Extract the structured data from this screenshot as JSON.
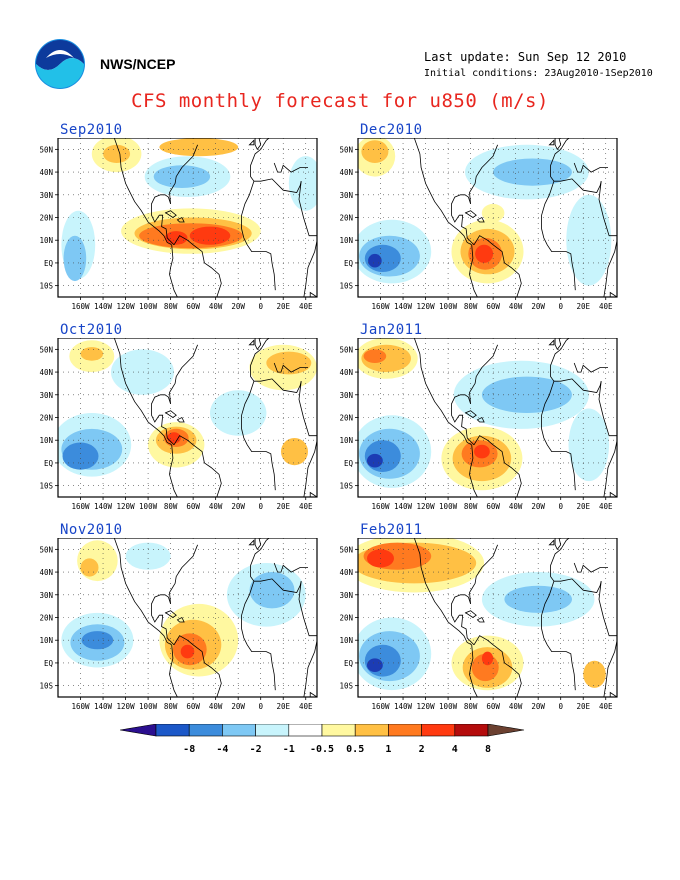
{
  "header": {
    "org": "NWS/NCEP",
    "last_update": "Last update: Sun Sep 12 2010",
    "initial_conditions": "Initial conditions: 23Aug2010-1Sep2010",
    "title": "CFS monthly forecast for u850 (m/s)",
    "logo_icon": "noaa-logo-icon"
  },
  "axes": {
    "lon_labels": [
      "160W",
      "140W",
      "120W",
      "100W",
      "80W",
      "60W",
      "40W",
      "20W",
      "0",
      "20E",
      "40E"
    ],
    "lat_labels": [
      "50N",
      "40N",
      "30N",
      "20N",
      "10N",
      "EQ",
      "10S"
    ]
  },
  "panels": [
    {
      "label": "Sep2010",
      "col": 0,
      "row": 0,
      "features": [
        {
          "c": "#fff8a0",
          "lon": -62,
          "lat": 14,
          "rx": 62,
          "ry": 10
        },
        {
          "c": "#ffc044",
          "lon": -60,
          "lat": 13,
          "rx": 52,
          "ry": 7
        },
        {
          "c": "#ff7a20",
          "lon": -62,
          "lat": 12,
          "rx": 46,
          "ry": 5.5
        },
        {
          "c": "#ff3a10",
          "lon": -45,
          "lat": 12,
          "rx": 18,
          "ry": 4
        },
        {
          "c": "#ff3a10",
          "lon": -75,
          "lat": 11,
          "rx": 10,
          "ry": 3
        },
        {
          "c": "#fff8a0",
          "lon": -128,
          "lat": 48,
          "rx": 22,
          "ry": 8
        },
        {
          "c": "#ffc044",
          "lon": -128,
          "lat": 48,
          "rx": 12,
          "ry": 4
        },
        {
          "c": "#ffc044",
          "lon": -55,
          "lat": 51,
          "rx": 35,
          "ry": 4
        },
        {
          "c": "#c8f4fc",
          "lon": -65,
          "lat": 38,
          "rx": 38,
          "ry": 9
        },
        {
          "c": "#7ec8f4",
          "lon": -70,
          "lat": 38,
          "rx": 25,
          "ry": 5
        },
        {
          "c": "#c8f4fc",
          "lon": -162,
          "lat": 8,
          "rx": 15,
          "ry": 15
        },
        {
          "c": "#7ec8f4",
          "lon": -165,
          "lat": 2,
          "rx": 10,
          "ry": 10
        },
        {
          "c": "#c8f4fc",
          "lon": 40,
          "lat": 35,
          "rx": 15,
          "ry": 12
        }
      ]
    },
    {
      "label": "Oct2010",
      "col": 0,
      "row": 1,
      "features": [
        {
          "c": "#c8f4fc",
          "lon": -150,
          "lat": 8,
          "rx": 35,
          "ry": 14
        },
        {
          "c": "#7ec8f4",
          "lon": -150,
          "lat": 6,
          "rx": 27,
          "ry": 9
        },
        {
          "c": "#3c8cdc",
          "lon": -160,
          "lat": 3,
          "rx": 16,
          "ry": 6
        },
        {
          "c": "#fff8a0",
          "lon": -75,
          "lat": 8,
          "rx": 25,
          "ry": 10
        },
        {
          "c": "#ffc044",
          "lon": -75,
          "lat": 10,
          "rx": 18,
          "ry": 6
        },
        {
          "c": "#ff7a20",
          "lon": -75,
          "lat": 11,
          "rx": 11,
          "ry": 4
        },
        {
          "c": "#ff3a10",
          "lon": -77,
          "lat": 11,
          "rx": 6,
          "ry": 2.5
        },
        {
          "c": "#fff8a0",
          "lon": -150,
          "lat": 47,
          "rx": 20,
          "ry": 7
        },
        {
          "c": "#ffc044",
          "lon": -150,
          "lat": 48,
          "rx": 10,
          "ry": 3
        },
        {
          "c": "#c8f4fc",
          "lon": -105,
          "lat": 40,
          "rx": 28,
          "ry": 10
        },
        {
          "c": "#fff8a0",
          "lon": 20,
          "lat": 42,
          "rx": 30,
          "ry": 10
        },
        {
          "c": "#ffc044",
          "lon": 25,
          "lat": 44,
          "rx": 20,
          "ry": 5
        },
        {
          "c": "#c8f4fc",
          "lon": -20,
          "lat": 22,
          "rx": 25,
          "ry": 10
        },
        {
          "c": "#ffc044",
          "lon": 30,
          "lat": 5,
          "rx": 12,
          "ry": 6
        }
      ]
    },
    {
      "label": "Nov2010",
      "col": 0,
      "row": 2,
      "features": [
        {
          "c": "#c8f4fc",
          "lon": -145,
          "lat": 10,
          "rx": 32,
          "ry": 12
        },
        {
          "c": "#7ec8f4",
          "lon": -145,
          "lat": 9,
          "rx": 24,
          "ry": 8
        },
        {
          "c": "#3c8cdc",
          "lon": -145,
          "lat": 10,
          "rx": 14,
          "ry": 4
        },
        {
          "c": "#fff8a0",
          "lon": -55,
          "lat": 10,
          "rx": 35,
          "ry": 16
        },
        {
          "c": "#ffc044",
          "lon": -60,
          "lat": 8,
          "rx": 25,
          "ry": 11
        },
        {
          "c": "#ff7a20",
          "lon": -63,
          "lat": 6,
          "rx": 15,
          "ry": 7
        },
        {
          "c": "#ff3a10",
          "lon": -65,
          "lat": 5,
          "rx": 6,
          "ry": 3
        },
        {
          "c": "#fff8a0",
          "lon": -145,
          "lat": 45,
          "rx": 18,
          "ry": 9
        },
        {
          "c": "#ffc044",
          "lon": -152,
          "lat": 42,
          "rx": 8,
          "ry": 4
        },
        {
          "c": "#c8f4fc",
          "lon": 5,
          "lat": 30,
          "rx": 35,
          "ry": 14
        },
        {
          "c": "#7ec8f4",
          "lon": 10,
          "lat": 32,
          "rx": 20,
          "ry": 8
        },
        {
          "c": "#c8f4fc",
          "lon": -100,
          "lat": 47,
          "rx": 20,
          "ry": 6
        }
      ]
    },
    {
      "label": "Dec2010",
      "col": 1,
      "row": 0,
      "features": [
        {
          "c": "#c8f4fc",
          "lon": -150,
          "lat": 5,
          "rx": 35,
          "ry": 14
        },
        {
          "c": "#7ec8f4",
          "lon": -152,
          "lat": 3,
          "rx": 27,
          "ry": 9
        },
        {
          "c": "#3c8cdc",
          "lon": -158,
          "lat": 2,
          "rx": 16,
          "ry": 6
        },
        {
          "c": "#1c3cb4",
          "lon": -165,
          "lat": 1,
          "rx": 6,
          "ry": 3
        },
        {
          "c": "#fff8a0",
          "lon": -65,
          "lat": 5,
          "rx": 32,
          "ry": 14
        },
        {
          "c": "#ffc044",
          "lon": -65,
          "lat": 5,
          "rx": 24,
          "ry": 10
        },
        {
          "c": "#ff7a20",
          "lon": -67,
          "lat": 4,
          "rx": 15,
          "ry": 7
        },
        {
          "c": "#ff3a10",
          "lon": -68,
          "lat": 4,
          "rx": 8,
          "ry": 4
        },
        {
          "c": "#fff8a0",
          "lon": -165,
          "lat": 47,
          "rx": 18,
          "ry": 9
        },
        {
          "c": "#ffc044",
          "lon": -165,
          "lat": 49,
          "rx": 12,
          "ry": 5
        },
        {
          "c": "#c8f4fc",
          "lon": -30,
          "lat": 40,
          "rx": 55,
          "ry": 12
        },
        {
          "c": "#7ec8f4",
          "lon": -25,
          "lat": 40,
          "rx": 35,
          "ry": 6
        },
        {
          "c": "#c8f4fc",
          "lon": 25,
          "lat": 10,
          "rx": 20,
          "ry": 20
        },
        {
          "c": "#fff8a0",
          "lon": -60,
          "lat": 22,
          "rx": 10,
          "ry": 4
        }
      ]
    },
    {
      "label": "Jan2011",
      "col": 1,
      "row": 1,
      "features": [
        {
          "c": "#c8f4fc",
          "lon": -150,
          "lat": 5,
          "rx": 35,
          "ry": 16
        },
        {
          "c": "#7ec8f4",
          "lon": -152,
          "lat": 4,
          "rx": 27,
          "ry": 11
        },
        {
          "c": "#3c8cdc",
          "lon": -158,
          "lat": 3,
          "rx": 16,
          "ry": 7
        },
        {
          "c": "#1c3cb4",
          "lon": -165,
          "lat": 1,
          "rx": 7,
          "ry": 3
        },
        {
          "c": "#fff8a0",
          "lon": -70,
          "lat": 2,
          "rx": 36,
          "ry": 14
        },
        {
          "c": "#ffc044",
          "lon": -70,
          "lat": 2,
          "rx": 26,
          "ry": 10
        },
        {
          "c": "#ff7a20",
          "lon": -72,
          "lat": 4,
          "rx": 16,
          "ry": 6
        },
        {
          "c": "#ff3a10",
          "lon": -70,
          "lat": 5,
          "rx": 7,
          "ry": 3
        },
        {
          "c": "#fff8a0",
          "lon": -155,
          "lat": 46,
          "rx": 28,
          "ry": 9
        },
        {
          "c": "#ffc044",
          "lon": -155,
          "lat": 46,
          "rx": 22,
          "ry": 6
        },
        {
          "c": "#ff7a20",
          "lon": -165,
          "lat": 47,
          "rx": 10,
          "ry": 3
        },
        {
          "c": "#c8f4fc",
          "lon": -35,
          "lat": 30,
          "rx": 60,
          "ry": 15
        },
        {
          "c": "#7ec8f4",
          "lon": -30,
          "lat": 30,
          "rx": 40,
          "ry": 8
        },
        {
          "c": "#c8f4fc",
          "lon": 25,
          "lat": 8,
          "rx": 18,
          "ry": 16
        }
      ]
    },
    {
      "label": "Feb2011",
      "col": 1,
      "row": 2,
      "features": [
        {
          "c": "#c8f4fc",
          "lon": -150,
          "lat": 4,
          "rx": 35,
          "ry": 16
        },
        {
          "c": "#7ec8f4",
          "lon": -152,
          "lat": 3,
          "rx": 27,
          "ry": 11
        },
        {
          "c": "#3c8cdc",
          "lon": -158,
          "lat": 1,
          "rx": 16,
          "ry": 7
        },
        {
          "c": "#1c3cb4",
          "lon": -165,
          "lat": -1,
          "rx": 7,
          "ry": 3
        },
        {
          "c": "#fff8a0",
          "lon": -65,
          "lat": 0,
          "rx": 32,
          "ry": 12
        },
        {
          "c": "#ffc044",
          "lon": -65,
          "lat": -2,
          "rx": 22,
          "ry": 9
        },
        {
          "c": "#ff7a20",
          "lon": -67,
          "lat": -2,
          "rx": 12,
          "ry": 6
        },
        {
          "c": "#ff3a10",
          "lon": -65,
          "lat": 2,
          "rx": 5,
          "ry": 3
        },
        {
          "c": "#fff8a0",
          "lon": -130,
          "lat": 44,
          "rx": 62,
          "ry": 13
        },
        {
          "c": "#ffc044",
          "lon": -130,
          "lat": 44,
          "rx": 55,
          "ry": 9
        },
        {
          "c": "#ff7a20",
          "lon": -145,
          "lat": 47,
          "rx": 30,
          "ry": 6
        },
        {
          "c": "#ff3a10",
          "lon": -160,
          "lat": 46,
          "rx": 12,
          "ry": 4
        },
        {
          "c": "#c8f4fc",
          "lon": -20,
          "lat": 28,
          "rx": 50,
          "ry": 12
        },
        {
          "c": "#7ec8f4",
          "lon": -20,
          "lat": 28,
          "rx": 30,
          "ry": 6
        },
        {
          "c": "#ffc044",
          "lon": 30,
          "lat": -5,
          "rx": 10,
          "ry": 6
        }
      ]
    }
  ],
  "colorbar": {
    "labels": [
      "-8",
      "-4",
      "-2",
      "-1",
      "-0.5",
      "0.5",
      "1",
      "2",
      "4",
      "8"
    ],
    "colors": [
      "#2b0f8f",
      "#1c58c8",
      "#3c8cdc",
      "#7ec8f4",
      "#c8f4fc",
      "#ffffff",
      "#fff8a0",
      "#ffc044",
      "#ff7a20",
      "#ff3a10",
      "#b40c0c",
      "#6b4030"
    ]
  }
}
